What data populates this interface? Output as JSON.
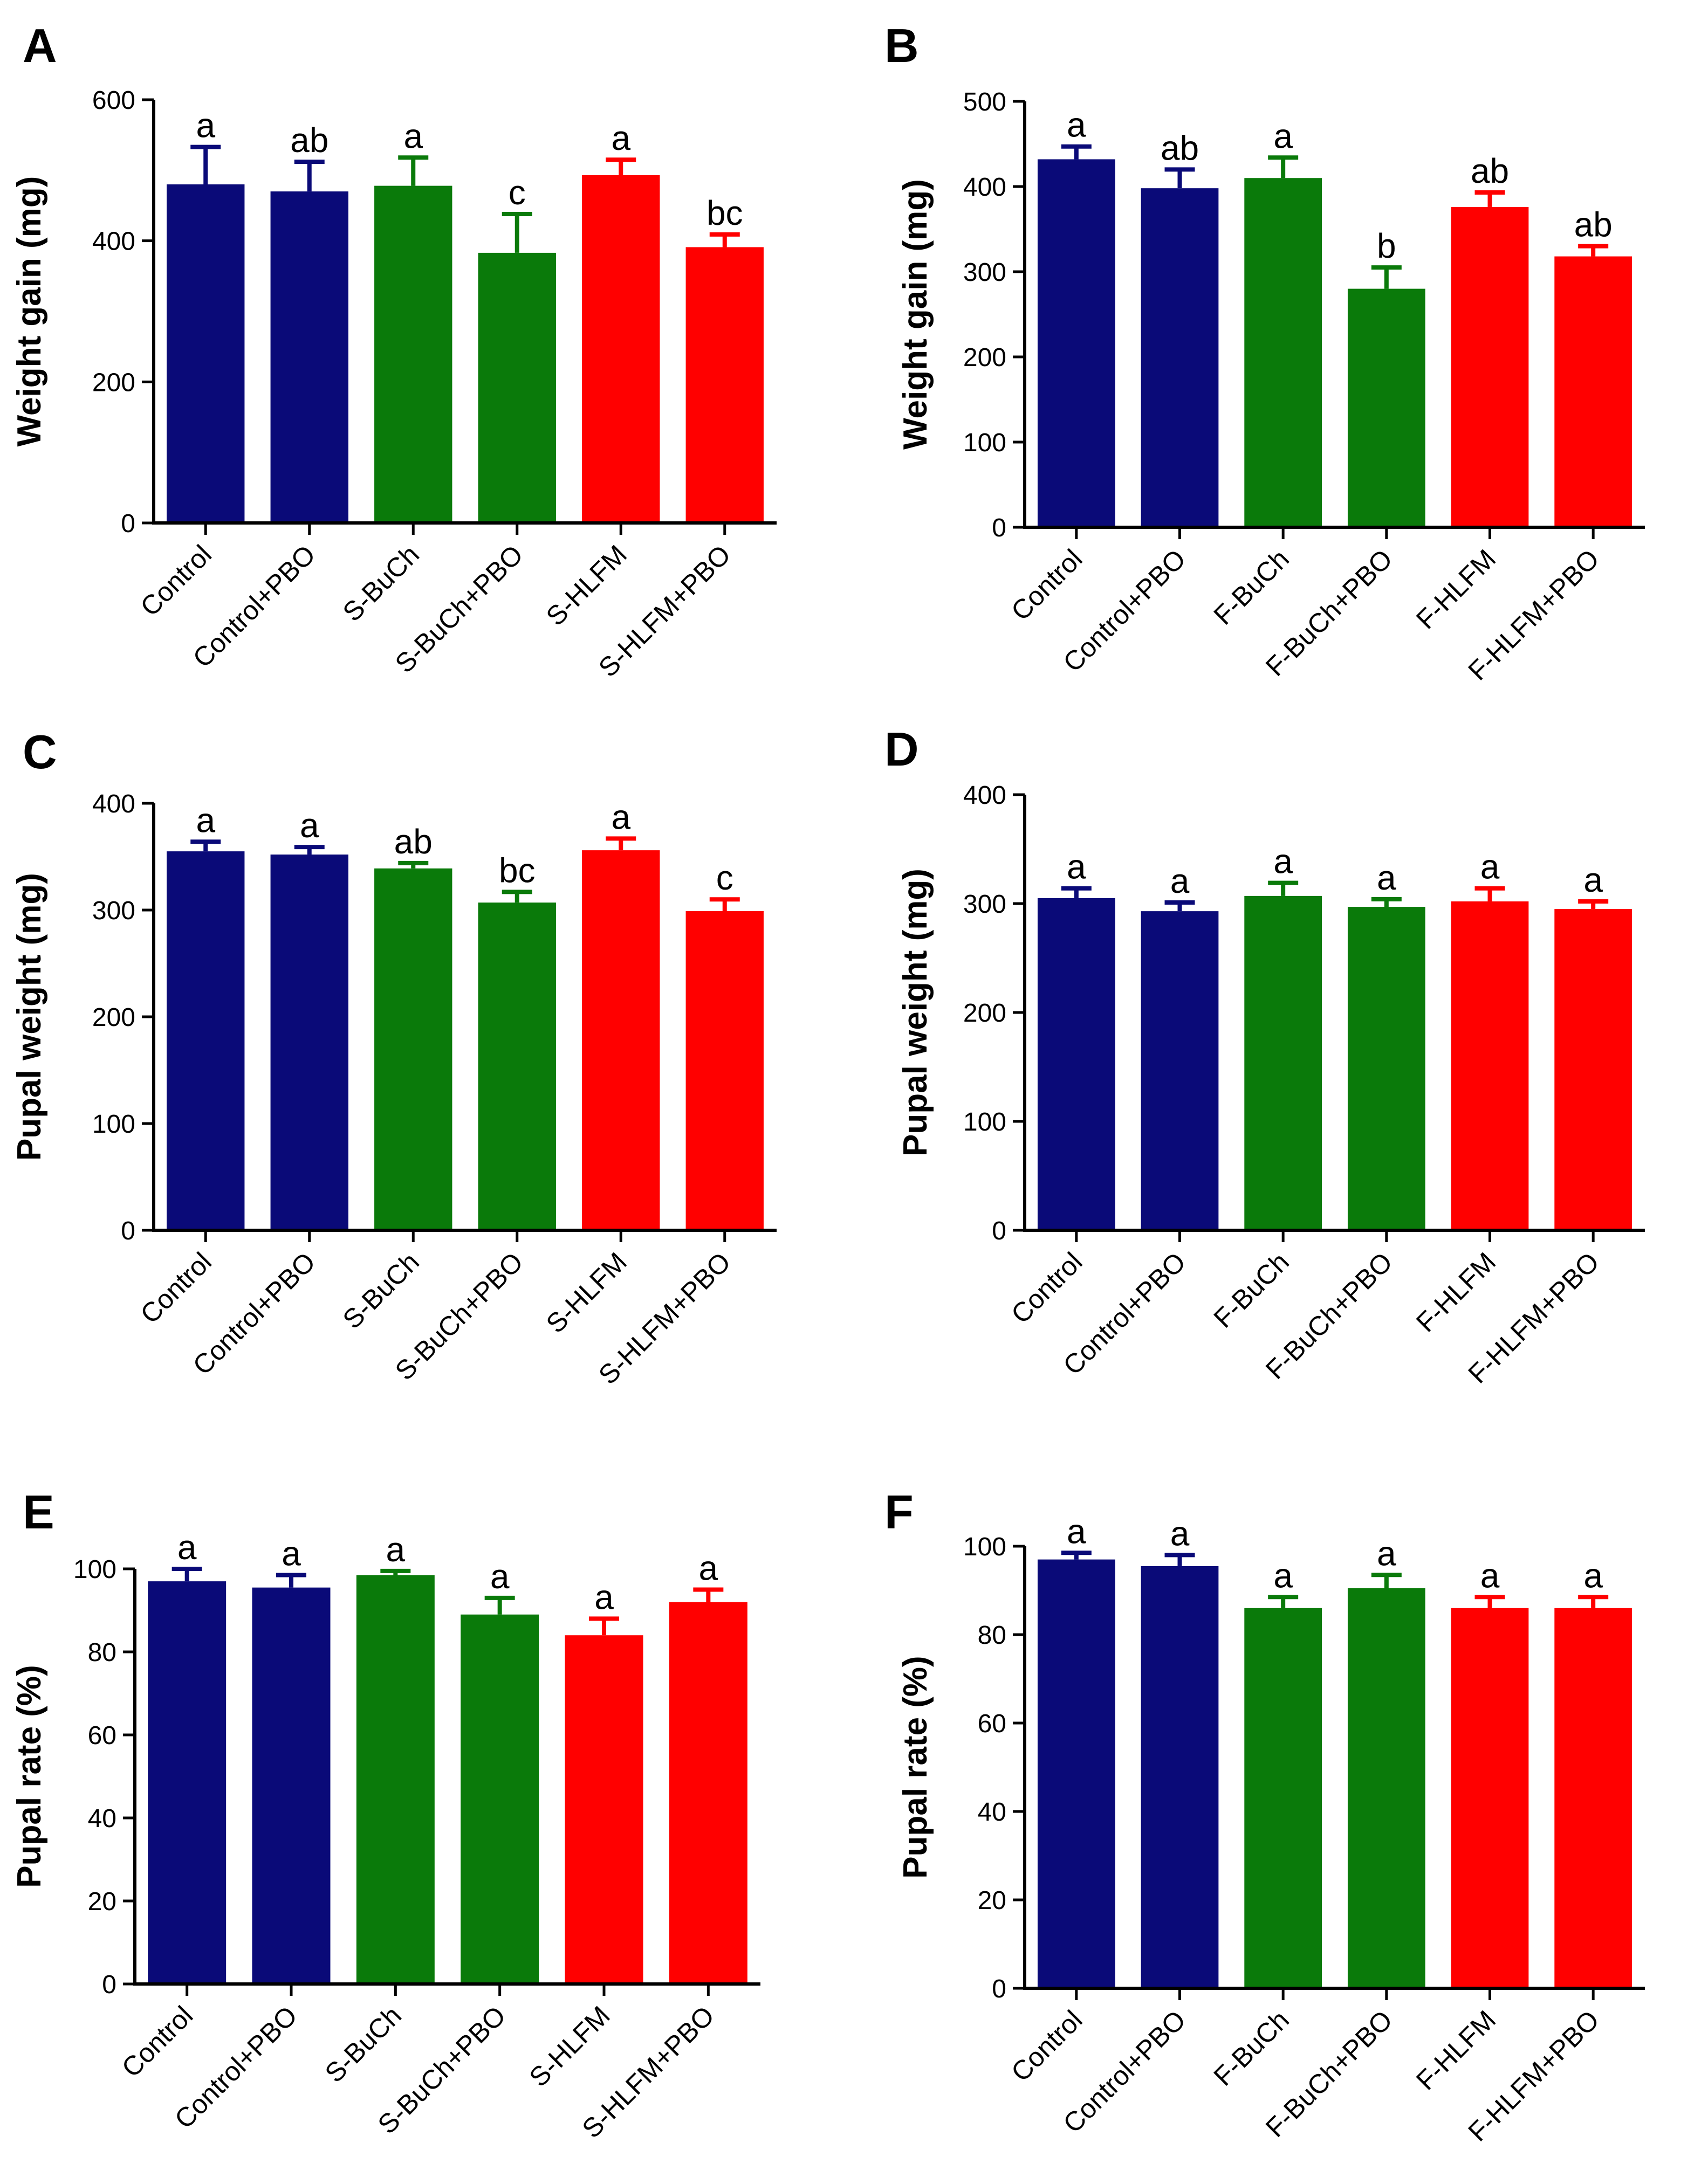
{
  "colors": {
    "blue": "#0a0a78",
    "green": "#0a7a0a",
    "red": "#ff0000"
  },
  "chart_data": [
    {
      "type": "bar",
      "panel": "A",
      "ylabel": "Weight gain (mg)",
      "ylim": [
        0,
        600
      ],
      "yticks": [
        "0",
        "200",
        "400",
        "600"
      ],
      "categories": [
        "Control",
        "Control+PBO",
        "S-BuCh",
        "S-BuCh+PBO",
        "S-HLFM",
        "S-HLFM+PBO"
      ],
      "values": [
        480,
        470,
        478,
        383,
        493,
        391
      ],
      "errors": [
        53,
        42,
        40,
        55,
        22,
        18
      ],
      "letters": [
        "a",
        "ab",
        "a",
        "c",
        "a",
        "bc"
      ],
      "colors": [
        "blue",
        "blue",
        "green",
        "green",
        "red",
        "red"
      ]
    },
    {
      "type": "bar",
      "panel": "B",
      "ylabel": "Weight gain (mg)",
      "ylim": [
        0,
        500
      ],
      "yticks": [
        "0",
        "100",
        "200",
        "300",
        "400",
        "500"
      ],
      "categories": [
        "Control",
        "Control+PBO",
        "F-BuCh",
        "F-BuCh+PBO",
        "F-HLFM",
        "F-HLFM+PBO"
      ],
      "values": [
        432,
        398,
        410,
        280,
        376,
        318
      ],
      "errors": [
        15,
        22,
        24,
        25,
        17,
        12
      ],
      "letters": [
        "a",
        "ab",
        "a",
        "b",
        "ab",
        "ab"
      ],
      "colors": [
        "blue",
        "blue",
        "green",
        "green",
        "red",
        "red"
      ]
    },
    {
      "type": "bar",
      "panel": "C",
      "ylabel": "Pupal weight (mg)",
      "ylim": [
        0,
        400
      ],
      "yticks": [
        "0",
        "100",
        "200",
        "300",
        "400"
      ],
      "categories": [
        "Control",
        "Control+PBO",
        "S-BuCh",
        "S-BuCh+PBO",
        "S-HLFM",
        "S-HLFM+PBO"
      ],
      "values": [
        355,
        352,
        339,
        307,
        356,
        299
      ],
      "errors": [
        9,
        7,
        5,
        10,
        11,
        11
      ],
      "letters": [
        "a",
        "a",
        "ab",
        "bc",
        "a",
        "c"
      ],
      "colors": [
        "blue",
        "blue",
        "green",
        "green",
        "red",
        "red"
      ]
    },
    {
      "type": "bar",
      "panel": "D",
      "ylabel": "Pupal weight (mg)",
      "ylim": [
        0,
        400
      ],
      "yticks": [
        "0",
        "100",
        "200",
        "300",
        "400"
      ],
      "categories": [
        "Control",
        "Control+PBO",
        "F-BuCh",
        "F-BuCh+PBO",
        "F-HLFM",
        "F-HLFM+PBO"
      ],
      "values": [
        305,
        293,
        307,
        297,
        302,
        295
      ],
      "errors": [
        9,
        8,
        12,
        7,
        12,
        7
      ],
      "letters": [
        "a",
        "a",
        "a",
        "a",
        "a",
        "a"
      ],
      "colors": [
        "blue",
        "blue",
        "green",
        "green",
        "red",
        "red"
      ]
    },
    {
      "type": "bar",
      "panel": "E",
      "ylabel": "Pupal rate (%)",
      "ylim": [
        0,
        100
      ],
      "yticks": [
        "0",
        "20",
        "40",
        "60",
        "80",
        "100"
      ],
      "categories": [
        "Control",
        "Control+PBO",
        "S-BuCh",
        "S-BuCh+PBO",
        "S-HLFM",
        "S-HLFM+PBO"
      ],
      "values": [
        97,
        95.5,
        98.5,
        89,
        84,
        92
      ],
      "errors": [
        3,
        3,
        1,
        4,
        4,
        3
      ],
      "letters": [
        "a",
        "a",
        "a",
        "a",
        "a",
        "a"
      ],
      "colors": [
        "blue",
        "blue",
        "green",
        "green",
        "red",
        "red"
      ]
    },
    {
      "type": "bar",
      "panel": "F",
      "ylabel": "Pupal rate (%)",
      "ylim": [
        0,
        100
      ],
      "yticks": [
        "0",
        "20",
        "40",
        "60",
        "80",
        "100"
      ],
      "categories": [
        "Control",
        "Control+PBO",
        "F-BuCh",
        "F-BuCh+PBO",
        "F-HLFM",
        "F-HLFM+PBO"
      ],
      "values": [
        97,
        95.5,
        86,
        90.5,
        86,
        86
      ],
      "errors": [
        1.5,
        2.5,
        2.5,
        3,
        2.5,
        2.5
      ],
      "letters": [
        "a",
        "a",
        "a",
        "a",
        "a",
        "a"
      ],
      "colors": [
        "blue",
        "blue",
        "green",
        "green",
        "red",
        "red"
      ]
    }
  ]
}
